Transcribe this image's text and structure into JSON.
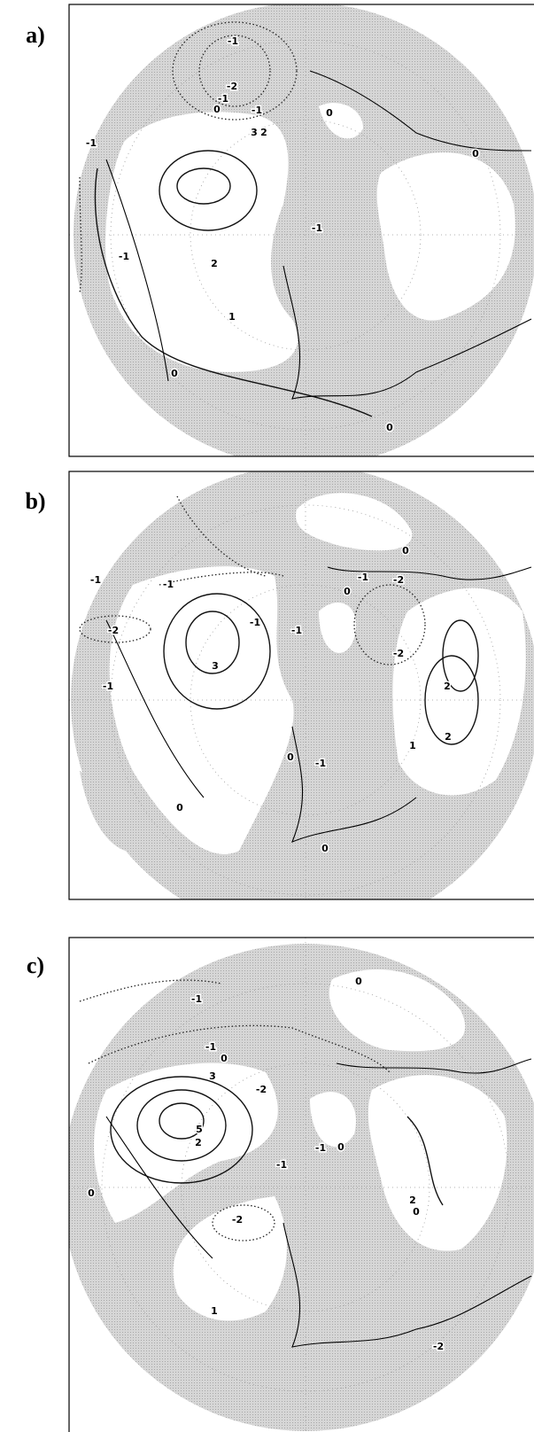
{
  "panels": [
    {
      "label": "a)",
      "contour_labels": [
        "-1",
        "-2",
        "-1",
        "0",
        "-1",
        "2",
        "3",
        "0",
        "0",
        "-1",
        "-1",
        "-1",
        "2",
        "1",
        "0",
        "0"
      ]
    },
    {
      "label": "b)",
      "contour_labels": [
        "0",
        "-1",
        "-1",
        "-2",
        "-1",
        "-1",
        "-2",
        "3",
        "0",
        "-1",
        "-1",
        "-2",
        "0",
        "2",
        "2",
        "0",
        "-1",
        "1",
        "0"
      ]
    },
    {
      "label": "c)",
      "contour_labels": [
        "0",
        "-1",
        "-1",
        "0",
        "3",
        "5",
        "-2",
        "2",
        "0",
        "-1",
        "-2",
        "2",
        "0",
        "-2",
        "1",
        "0",
        "-1"
      ]
    }
  ]
}
